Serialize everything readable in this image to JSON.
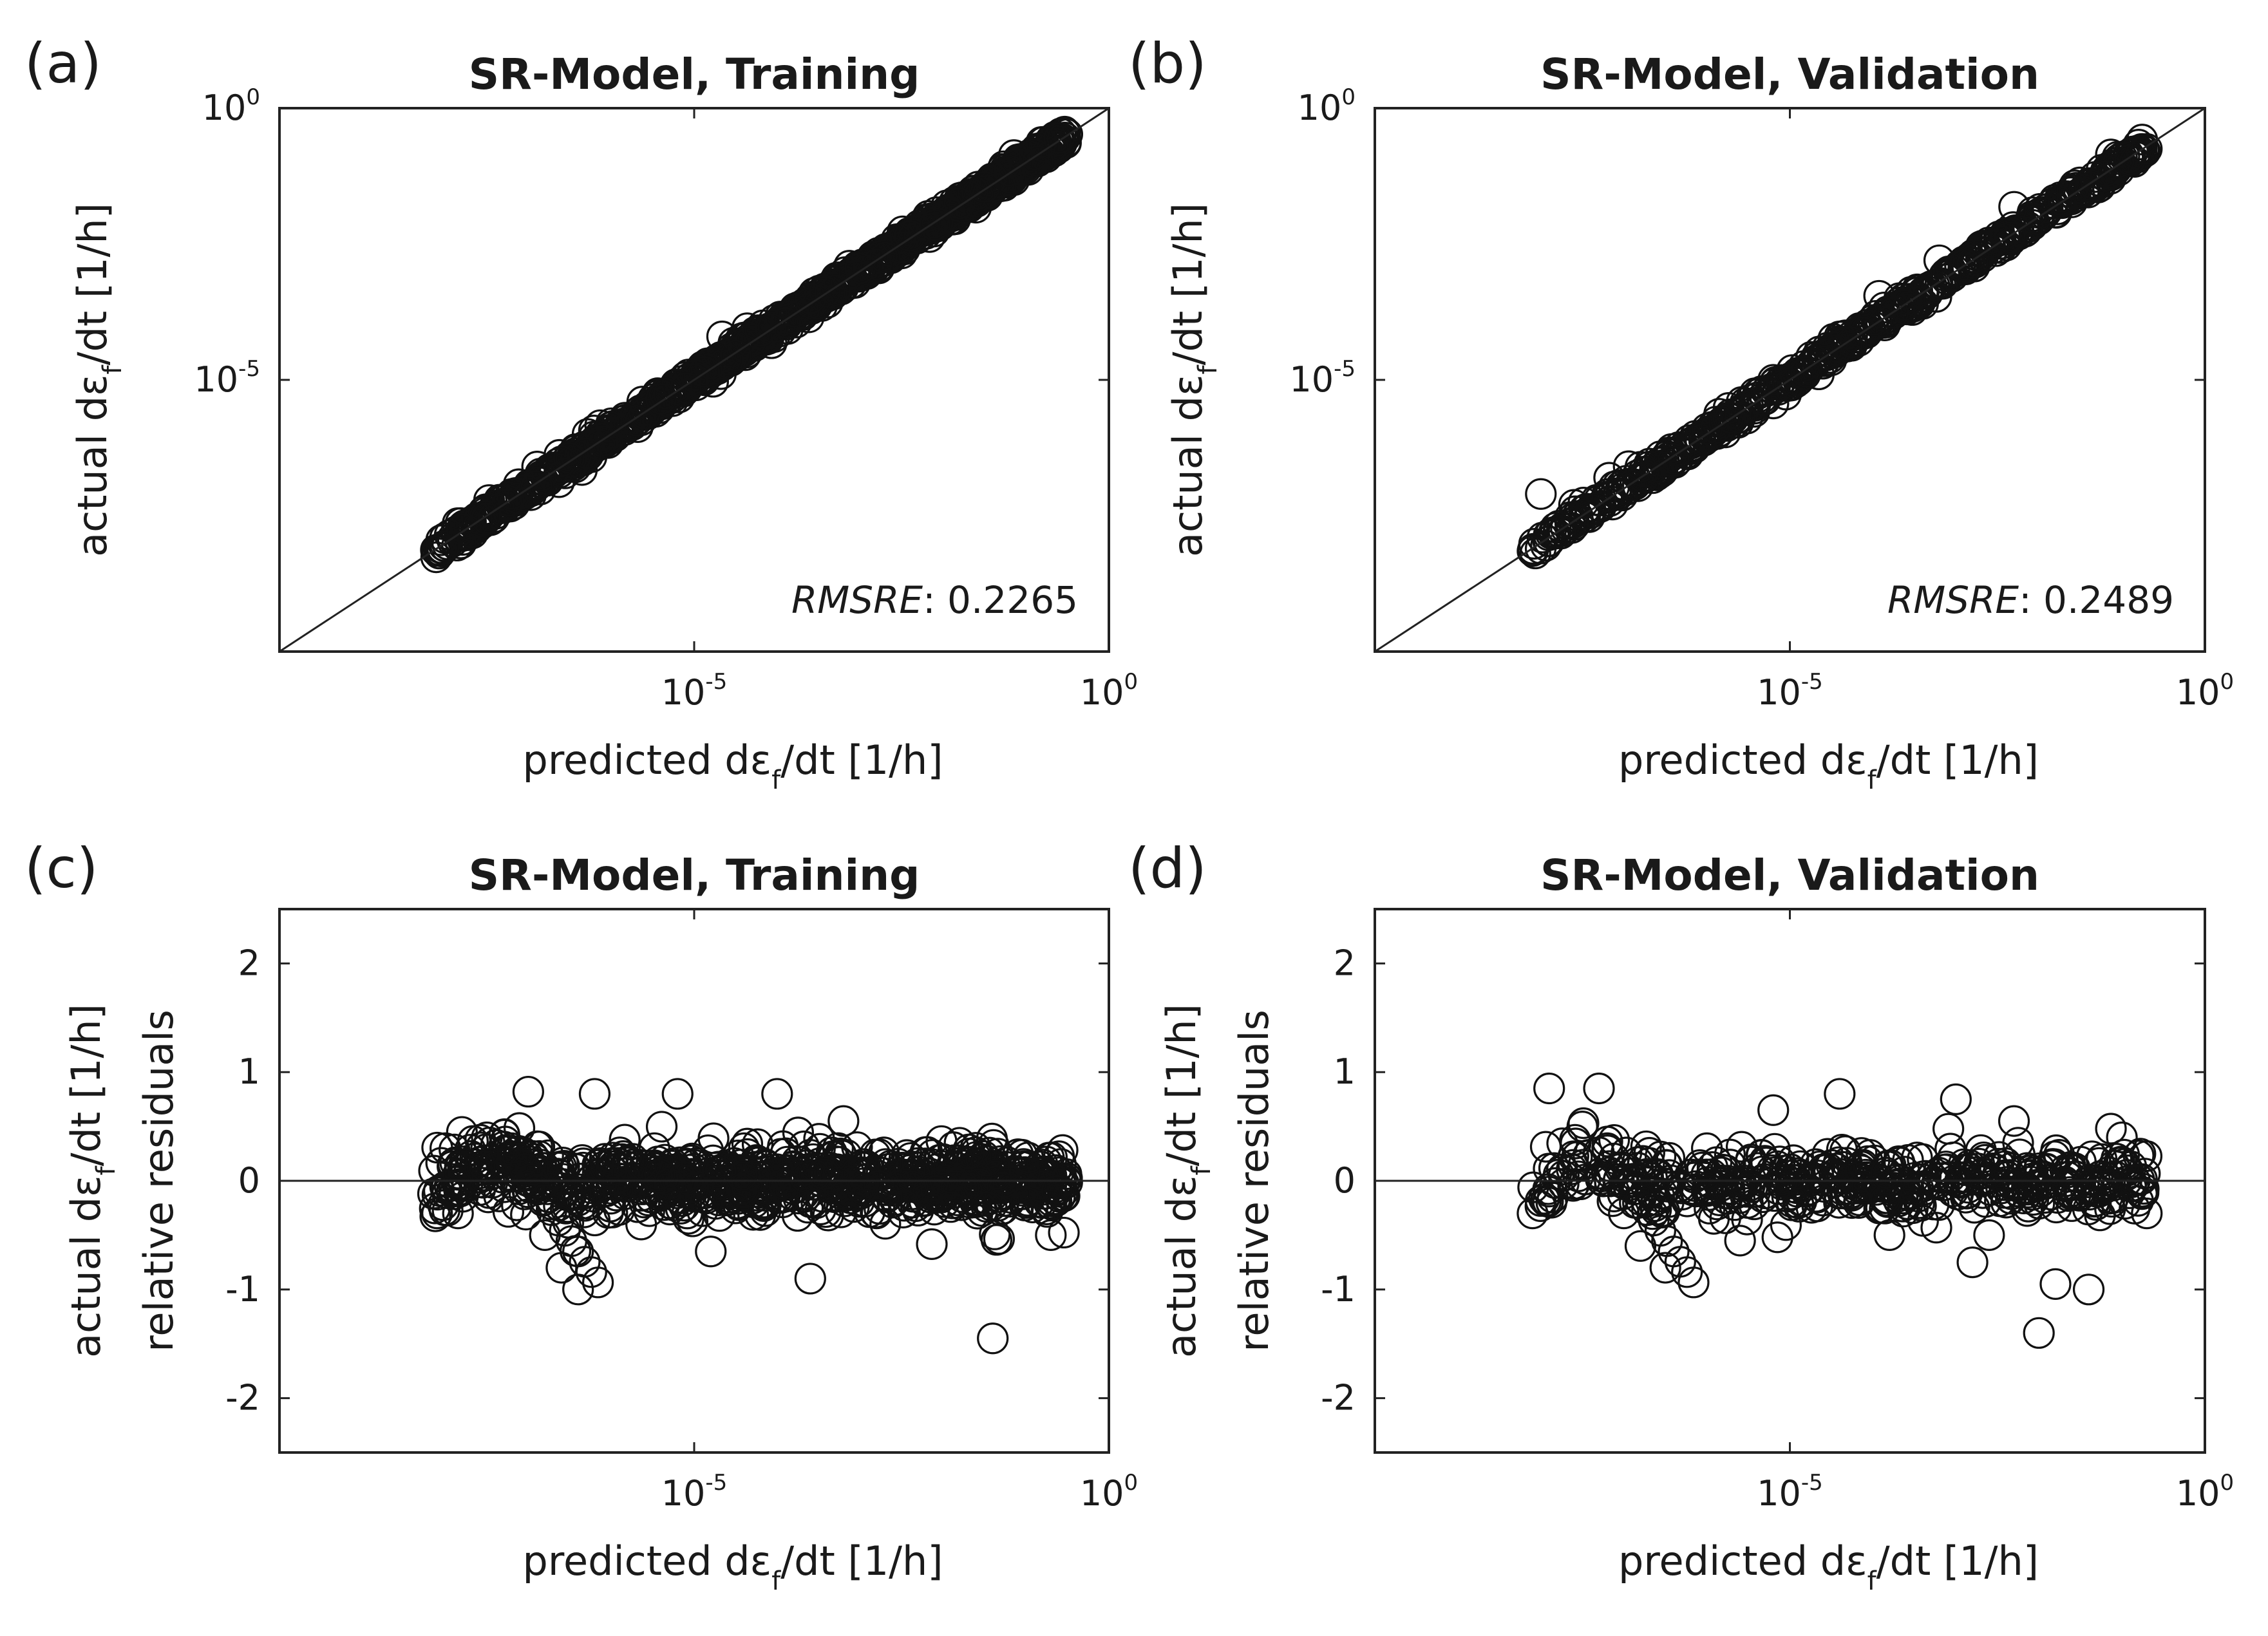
{
  "chart_data": [
    {
      "panel": "(a)",
      "type": "scatter",
      "title": "SR-Model, Training",
      "xlabel": "predicted dε_f/dt  [1/h]",
      "ylabel": "actual dε_f/dt  [1/h]",
      "xscale": "log",
      "yscale": "log",
      "xlim_log10": [
        -10,
        0
      ],
      "ylim_log10": [
        -10,
        0
      ],
      "xticks": [
        {
          "base": "10",
          "exp": "-5"
        },
        {
          "base": "10",
          "exp": "0"
        }
      ],
      "yticks": [
        {
          "base": "10",
          "exp": "-5"
        },
        {
          "base": "10",
          "exp": "0"
        }
      ],
      "reference_line": "y = x",
      "annotation": {
        "name": "RMSRE",
        "value": ": 0.2265"
      },
      "sample_points_log10": [
        [
          -8.1,
          -8.15
        ],
        [
          -8.05,
          -7.95
        ],
        [
          -7.8,
          -7.75
        ],
        [
          -7.5,
          -7.55
        ],
        [
          -7.2,
          -7.1
        ],
        [
          -6.9,
          -6.95
        ],
        [
          -6.6,
          -6.5
        ],
        [
          -6.3,
          -6.35
        ],
        [
          -6.0,
          -5.8
        ],
        [
          -5.7,
          -5.75
        ],
        [
          -5.4,
          -5.35
        ],
        [
          -5.1,
          -5.15
        ],
        [
          -4.8,
          -4.7
        ],
        [
          -4.5,
          -4.55
        ],
        [
          -4.2,
          -4.1
        ],
        [
          -3.9,
          -3.95
        ],
        [
          -3.6,
          -3.5
        ],
        [
          -3.3,
          -3.35
        ],
        [
          -3.0,
          -2.95
        ],
        [
          -2.7,
          -2.75
        ],
        [
          -2.4,
          -2.35
        ],
        [
          -2.1,
          -2.15
        ],
        [
          -1.8,
          -1.75
        ],
        [
          -1.5,
          -1.45
        ],
        [
          -1.2,
          -1.15
        ],
        [
          -0.9,
          -0.85
        ],
        [
          -0.6,
          -0.55
        ]
      ]
    },
    {
      "panel": "(b)",
      "type": "scatter",
      "title": "SR-Model, Validation",
      "xlabel": "predicted dε_f/dt  [1/h]",
      "ylabel": "actual dε_f/dt  [1/h]",
      "xscale": "log",
      "yscale": "log",
      "xlim_log10": [
        -10,
        0
      ],
      "ylim_log10": [
        -10,
        0
      ],
      "xticks": [
        {
          "base": "10",
          "exp": "-5"
        },
        {
          "base": "10",
          "exp": "0"
        }
      ],
      "yticks": [
        {
          "base": "10",
          "exp": "-5"
        },
        {
          "base": "10",
          "exp": "0"
        }
      ],
      "reference_line": "y = x",
      "annotation": {
        "name": "RMSRE",
        "value": ": 0.2489"
      },
      "sample_points_log10": [
        [
          -8.1,
          -8.15
        ],
        [
          -8.0,
          -7.1
        ],
        [
          -7.6,
          -7.3
        ],
        [
          -7.2,
          -7.15
        ],
        [
          -6.8,
          -6.6
        ],
        [
          -6.4,
          -6.45
        ],
        [
          -6.0,
          -5.9
        ],
        [
          -5.6,
          -5.7
        ],
        [
          -5.2,
          -5.0
        ],
        [
          -4.8,
          -4.85
        ],
        [
          -4.4,
          -4.2
        ],
        [
          -4.0,
          -3.9
        ],
        [
          -3.6,
          -3.7
        ],
        [
          -3.2,
          -2.8
        ],
        [
          -2.8,
          -2.85
        ],
        [
          -2.4,
          -2.3
        ],
        [
          -2.0,
          -2.05
        ],
        [
          -1.6,
          -1.5
        ],
        [
          -1.2,
          -1.25
        ],
        [
          -0.9,
          -0.95
        ],
        [
          -0.7,
          -0.75
        ]
      ]
    },
    {
      "panel": "(c)",
      "type": "scatter",
      "title": "SR-Model, Training",
      "xlabel": "predicted dε_f/dt  [1/h]",
      "ylabel_line1": "actual dε_f/dt  [1/h]",
      "ylabel_line2": "relative residuals",
      "xscale": "log",
      "xlim_log10": [
        -10,
        0
      ],
      "ylim": [
        -2.5,
        2.5
      ],
      "xticks": [
        {
          "base": "10",
          "exp": "-5"
        },
        {
          "base": "10",
          "exp": "0"
        }
      ],
      "yticks": [
        "2",
        "1",
        "0",
        "-1",
        "-2"
      ],
      "reference_line": "y = 0",
      "sample_points": [
        [
          -8.1,
          -0.3
        ],
        [
          -8.0,
          0.3
        ],
        [
          -7.8,
          0.45
        ],
        [
          -7.5,
          0.4
        ],
        [
          -7.2,
          0.2
        ],
        [
          -7.0,
          0.82
        ],
        [
          -6.8,
          -0.5
        ],
        [
          -6.6,
          -0.8
        ],
        [
          -6.4,
          -1.0
        ],
        [
          -6.2,
          0.8
        ],
        [
          -6.0,
          0.1
        ],
        [
          -5.6,
          -0.2
        ],
        [
          -5.2,
          0.8
        ],
        [
          -4.8,
          -0.65
        ],
        [
          -4.4,
          0.3
        ],
        [
          -4.0,
          0.8
        ],
        [
          -3.6,
          -0.9
        ],
        [
          -3.2,
          0.55
        ],
        [
          -2.8,
          -0.3
        ],
        [
          -2.4,
          0.1
        ],
        [
          -2.0,
          0.2
        ],
        [
          -1.8,
          0.35
        ],
        [
          -1.4,
          -1.45
        ],
        [
          -1.0,
          -0.2
        ],
        [
          -0.7,
          -0.5
        ],
        [
          -0.8,
          0.15
        ]
      ]
    },
    {
      "panel": "(d)",
      "type": "scatter",
      "title": "SR-Model, Validation",
      "xlabel": "predicted dε_f/dt  [1/h]",
      "ylabel_line1": "actual dε_f/dt  [1/h]",
      "ylabel_line2": "relative residuals",
      "xscale": "log",
      "xlim_log10": [
        -10,
        0
      ],
      "ylim": [
        -2.5,
        2.5
      ],
      "xticks": [
        {
          "base": "10",
          "exp": "-5"
        },
        {
          "base": "10",
          "exp": "0"
        }
      ],
      "yticks": [
        "2",
        "1",
        "0",
        "-1",
        "-2"
      ],
      "reference_line": "y = 0",
      "sample_points": [
        [
          -8.1,
          -0.3
        ],
        [
          -7.9,
          0.85
        ],
        [
          -7.5,
          0.5
        ],
        [
          -7.3,
          0.85
        ],
        [
          -7.0,
          -0.3
        ],
        [
          -6.8,
          -0.6
        ],
        [
          -6.5,
          -0.8
        ],
        [
          -6.0,
          0.3
        ],
        [
          -5.6,
          -0.55
        ],
        [
          -5.2,
          0.65
        ],
        [
          -4.8,
          -0.1
        ],
        [
          -4.4,
          0.8
        ],
        [
          -3.8,
          -0.5
        ],
        [
          -3.4,
          0.2
        ],
        [
          -3.0,
          0.75
        ],
        [
          -2.8,
          -0.75
        ],
        [
          -2.6,
          -0.5
        ],
        [
          -2.3,
          0.55
        ],
        [
          -2.0,
          -1.4
        ],
        [
          -1.8,
          -0.95
        ],
        [
          -1.4,
          -1.0
        ],
        [
          -1.0,
          0.4
        ],
        [
          -0.7,
          -0.3
        ]
      ]
    }
  ]
}
